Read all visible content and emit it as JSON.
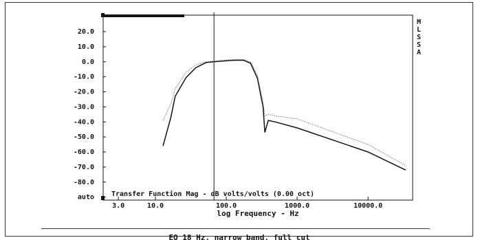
{
  "chart_data": {
    "type": "line",
    "xlabel": "log Frequency - Hz",
    "annotation": "Transfer Function Mag - dB volts/volts (0.00 oct)",
    "side_label": [
      "M",
      "L",
      "S",
      "S",
      "A"
    ],
    "caption": "EQ 18 Hz, narrow band, full cut",
    "xscale": "log",
    "xlim": [
      1.83,
      42600
    ],
    "ylim": [
      -92,
      31
    ],
    "xticks": [
      {
        "value": 3,
        "label": "3.0"
      },
      {
        "value": 10,
        "label": "10.0"
      },
      {
        "value": 100,
        "label": "100.0"
      },
      {
        "value": 1000,
        "label": "1000.0"
      },
      {
        "value": 10000,
        "label": "10000.0"
      }
    ],
    "yticks": [
      {
        "value": 20,
        "label": "20.0"
      },
      {
        "value": 10,
        "label": "10.0"
      },
      {
        "value": 0,
        "label": "0.0"
      },
      {
        "value": -10,
        "label": "-10.0"
      },
      {
        "value": -20,
        "label": "-20.0"
      },
      {
        "value": -30,
        "label": "-30.0"
      },
      {
        "value": -40,
        "label": "-40.0"
      },
      {
        "value": -50,
        "label": "-50.0"
      },
      {
        "value": -60,
        "label": "-60.0"
      },
      {
        "value": -70,
        "label": "-70.0"
      },
      {
        "value": -80,
        "label": "-80.0"
      },
      {
        "value": -90,
        "label": "auto"
      }
    ],
    "cursor_x": 67,
    "series": [
      {
        "color": "#111111",
        "dash": "solid",
        "x": [
          12.8,
          16.5,
          19,
          27,
          37,
          52,
          67,
          91,
          126,
          175,
          220,
          275,
          330,
          350,
          390,
          490,
          1000,
          10000,
          34000
        ],
        "values": [
          -56,
          -37,
          -23,
          -10.5,
          -4,
          -0.5,
          0,
          0.5,
          1,
          1,
          -1,
          -11,
          -30,
          -47,
          -39,
          -40,
          -44,
          -60,
          -72
        ]
      },
      {
        "color": "#777777",
        "dash": "dotted",
        "x": [
          12.8,
          16.5,
          19,
          27,
          37,
          52,
          67,
          91,
          126,
          175,
          220,
          275,
          330,
          350,
          390,
          490,
          1000,
          10000,
          34000
        ],
        "values": [
          -39,
          -28,
          -18,
          -7,
          -2,
          0,
          0.5,
          1,
          1.5,
          1.5,
          0,
          -9,
          -27,
          -36,
          -35,
          -36,
          -38,
          -55,
          -69
        ]
      }
    ]
  }
}
